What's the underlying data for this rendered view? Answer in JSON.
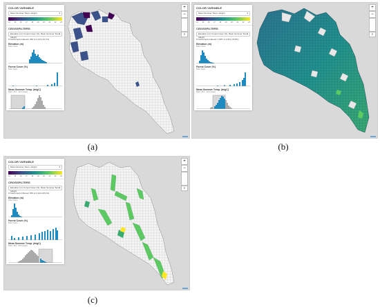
{
  "panels": [
    {
      "caption": "(a)",
      "color_variable": {
        "heading": "COLOR VARIABLE",
        "selected": "Mean Summer Temp. (degC)",
        "ticks": [
          "14",
          "15",
          "16",
          "17",
          "18",
          "19",
          "20",
          "21",
          "22",
          "23"
        ]
      },
      "crossfilters": {
        "heading": "CROSSFILTERS",
        "selected": "Elevation (m), Forest Cover (%), Mean Summer Temp. (degC)",
        "summary": "# Catchments Filtered: 396 of 2,014 (19.7%)",
        "filters": [
          {
            "title": "Elevation (m)",
            "filter": "Filter: None"
          },
          {
            "title": "Forest Cover (%)",
            "filter": "Filter: None"
          },
          {
            "title": "Mean Summer Temp. (degC)",
            "filter": "Filter: 12.0 - 16.0 (reset)"
          }
        ]
      }
    },
    {
      "caption": "(b)",
      "color_variable": {
        "heading": "COLOR VARIABLE",
        "selected": "Mean Summer Temp. (degC)",
        "ticks": [
          "14",
          "15",
          "16",
          "17",
          "18",
          "19",
          "20",
          "21",
          "22",
          "23"
        ]
      },
      "crossfilters": {
        "heading": "CROSSFILTERS",
        "selected": "Elevation (m), Forest Cover (%), Mean Summer Temp. (degC)",
        "summary": "# Catchments Filtered: 1,587 of 2,014 (78.8%)",
        "filters": [
          {
            "title": "Elevation (m)",
            "filter": "Filter: None"
          },
          {
            "title": "Forest Cover (%)",
            "filter": "Filter: None"
          },
          {
            "title": "Mean Summer Temp. (degC)",
            "filter": "Filter: 16.0 - 19.0 (reset)"
          }
        ]
      }
    },
    {
      "caption": "(c)",
      "color_variable": {
        "heading": "COLOR VARIABLE",
        "selected": "Mean Summer Temp. (degC)",
        "ticks": [
          "14",
          "15",
          "16",
          "17",
          "18",
          "19",
          "20",
          "21",
          "22",
          "23"
        ]
      },
      "crossfilters": {
        "heading": "CROSSFILTERS",
        "selected": "Elevation (m), Forest Cover (%), Mean Summer Temp. (degC)",
        "summary": "# Catchments Filtered: 565 of 2,014 (28.1%)",
        "filters": [
          {
            "title": "Elevation (m)",
            "filter": "Filter: None"
          },
          {
            "title": "Forest Cover (%)",
            "filter": "Filter: None"
          },
          {
            "title": "Mean Summer Temp. (degC)",
            "filter": "Filter: 19.0 - 22.0 (reset)"
          }
        ]
      }
    }
  ],
  "map_controls": {
    "zoom_in": "+",
    "zoom_out": "−",
    "layers": "≡"
  },
  "colors": {
    "viridis_dark": "#440154",
    "viridis_blue": "#3b528b",
    "viridis_teal": "#21908d",
    "viridis_green": "#5dc963",
    "viridis_yellow": "#fde725",
    "hist_bar": "#1f8ac0",
    "hist_gray": "#aaaaaa"
  }
}
